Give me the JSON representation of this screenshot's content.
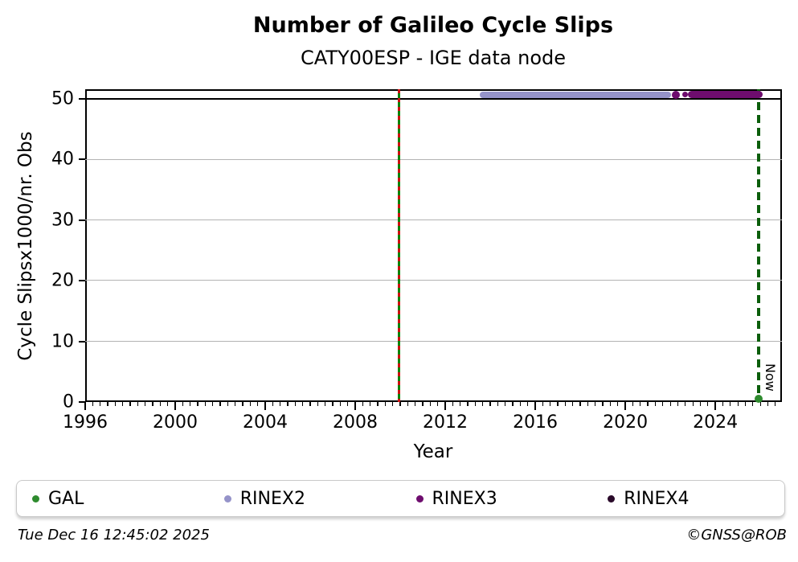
{
  "footer": {
    "timestamp": "Tue Dec 16 12:45:02 2025",
    "credit": "©GNSS@ROB"
  },
  "legend": {
    "items": [
      {
        "label": "GAL",
        "color": "#2e8b2e"
      },
      {
        "label": "RINEX2",
        "color": "#9593c9"
      },
      {
        "label": "RINEX3",
        "color": "#6e0d6e"
      },
      {
        "label": "RINEX4",
        "color": "#2a0a2a"
      }
    ]
  },
  "chart_data": {
    "type": "scatter",
    "title": "Number of Galileo Cycle Slips",
    "subtitle": "CATY00ESP - IGE data node",
    "xlabel": "Year",
    "ylabel": "Cycle Slipsx1000/nr. Obs",
    "xlim": [
      1996,
      2026.96
    ],
    "ylim": [
      0,
      51.6
    ],
    "xticks": [
      1996,
      2000,
      2004,
      2008,
      2012,
      2016,
      2020,
      2024
    ],
    "x_minor_per_year": 3,
    "yticks": [
      0,
      10,
      20,
      30,
      40,
      50
    ],
    "grid": "horizontal",
    "grid_color": "#b3b3b3",
    "hline": {
      "y": 50,
      "color": "#000000",
      "width": 2.5
    },
    "vlines": [
      {
        "name": "event-2010",
        "x": 2009.96,
        "style": "green-red-dashed",
        "label": ""
      },
      {
        "name": "now",
        "x": 2025.93,
        "style": "dark-green-dashed",
        "label": "Now"
      }
    ],
    "series": [
      {
        "name": "GAL",
        "color": "#2e8b2e",
        "points": [
          {
            "x": 2025.93,
            "y": 0.5,
            "r": 5
          }
        ],
        "segments": []
      },
      {
        "name": "RINEX2",
        "color": "#9593c9",
        "points": [],
        "segments": [
          {
            "x1": 2013.68,
            "x2": 2021.9,
            "y": 50.7,
            "r": 4
          }
        ]
      },
      {
        "name": "RINEX3",
        "color": "#6e0d6e",
        "points": [
          {
            "x": 2022.25,
            "y": 50.7,
            "r": 5
          },
          {
            "x": 2022.66,
            "y": 50.7,
            "r": 3.5
          }
        ],
        "segments": [
          {
            "x1": 2022.95,
            "x2": 2025.96,
            "y": 50.7,
            "r": 4.5
          }
        ]
      },
      {
        "name": "RINEX4",
        "color": "#2a0a2a",
        "points": [],
        "segments": []
      }
    ],
    "legend_position": "bottom",
    "legend_entries": [
      "GAL",
      "RINEX2",
      "RINEX3",
      "RINEX4"
    ]
  }
}
